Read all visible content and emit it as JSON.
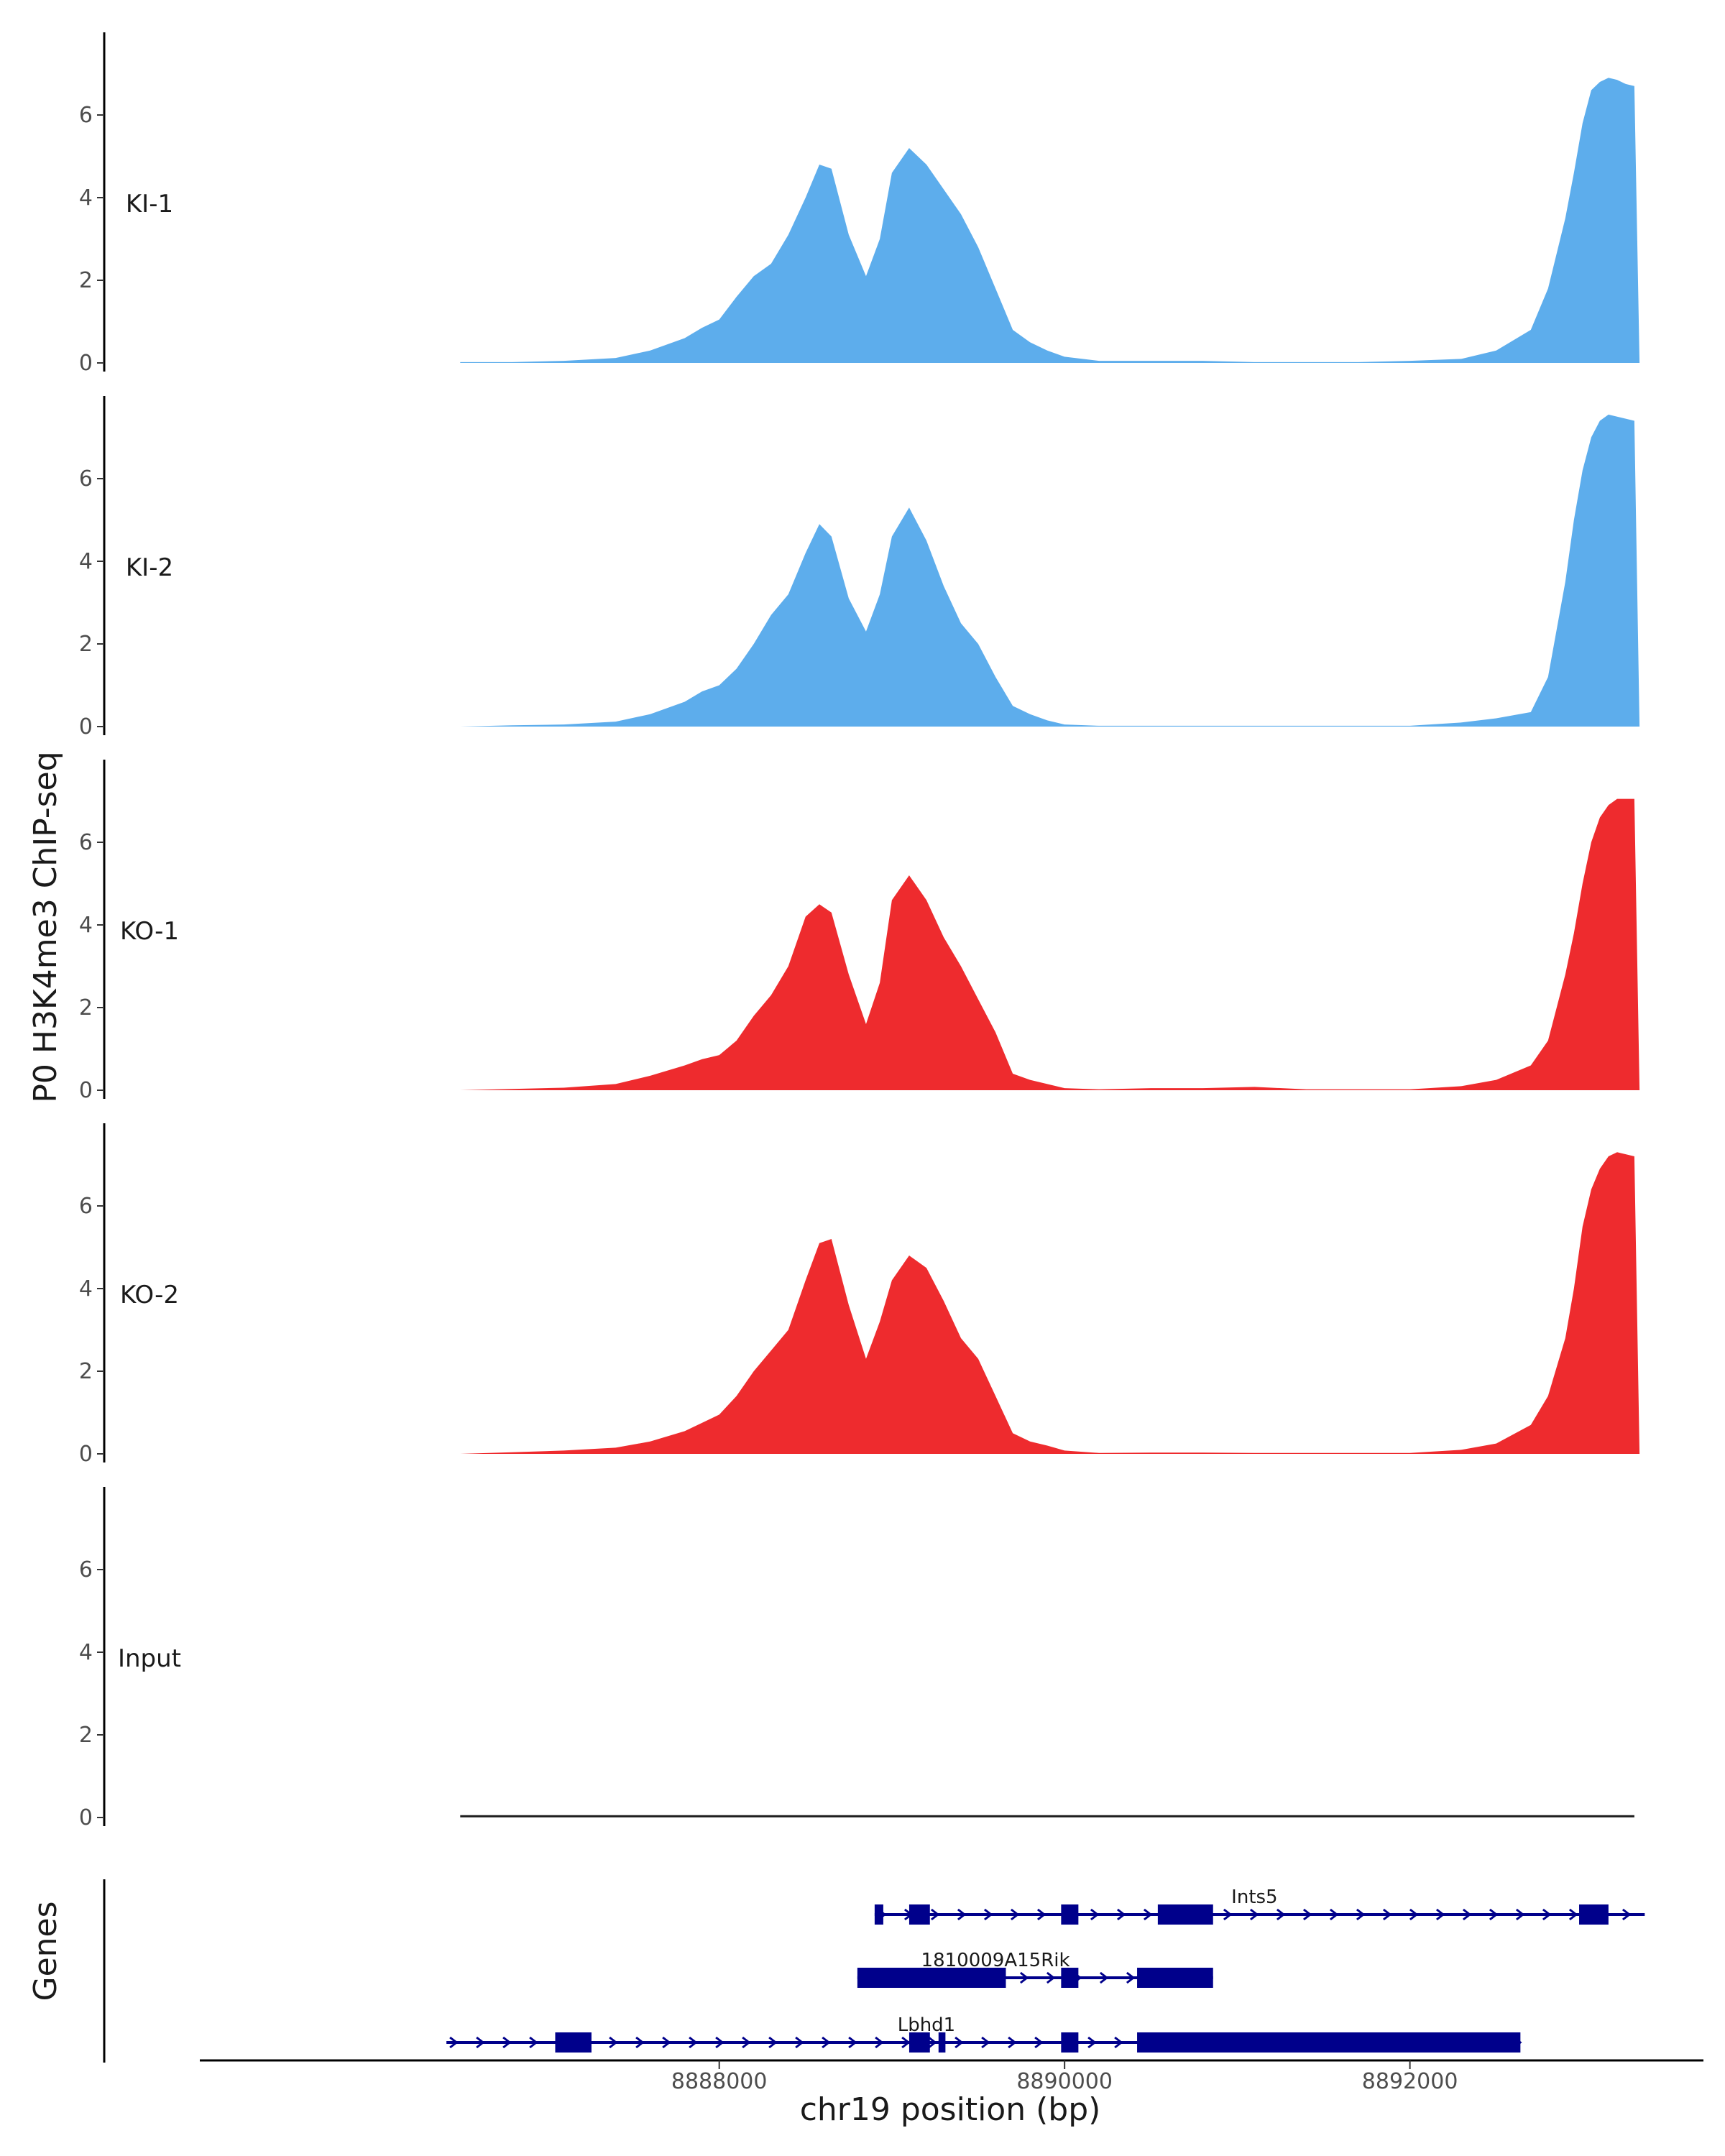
{
  "chart_data": {
    "type": "area",
    "title": "",
    "ylabel": "P0 H3K4me3 ChIP-seq",
    "xlabel": "chr19 position (bp)",
    "genes_label": "Genes",
    "xlim": [
      8885000,
      8893700
    ],
    "ylim": [
      0,
      7.8
    ],
    "y_ticks": [
      "0",
      "2",
      "4",
      "6"
    ],
    "y_tick_values": [
      0,
      2,
      4,
      6
    ],
    "x_ticks": [
      "8888000",
      "8890000",
      "8892000"
    ],
    "x_tick_values": [
      8888000,
      8890000,
      8892000
    ],
    "x": [
      8886500,
      8886800,
      8887100,
      8887400,
      8887600,
      8887800,
      8887900,
      8888000,
      8888100,
      8888200,
      8888300,
      8888400,
      8888500,
      8888580,
      8888650,
      8888750,
      8888850,
      8888930,
      8889000,
      8889100,
      8889200,
      8889300,
      8889400,
      8889500,
      8889600,
      8889700,
      8889800,
      8889900,
      8890000,
      8890200,
      8890500,
      8890800,
      8891100,
      8891400,
      8891700,
      8892000,
      8892300,
      8892500,
      8892700,
      8892800,
      8892900,
      8892950,
      8893000,
      8893050,
      8893100,
      8893150,
      8893200,
      8893250,
      8893300,
      8893330
    ],
    "series": [
      {
        "name": "KI-1",
        "color": "#5DADEC",
        "values": [
          0.02,
          0.02,
          0.05,
          0.12,
          0.3,
          0.6,
          0.85,
          1.05,
          1.6,
          2.1,
          2.4,
          3.1,
          4.0,
          4.8,
          4.7,
          3.1,
          2.1,
          3.0,
          4.6,
          5.2,
          4.8,
          4.2,
          3.6,
          2.8,
          1.8,
          0.8,
          0.5,
          0.3,
          0.15,
          0.05,
          0.05,
          0.05,
          0.02,
          0.02,
          0.02,
          0.05,
          0.1,
          0.3,
          0.8,
          1.8,
          3.5,
          4.6,
          5.8,
          6.6,
          6.8,
          6.9,
          6.85,
          6.75,
          6.7,
          0
        ]
      },
      {
        "name": "KI-2",
        "color": "#5DADEC",
        "values": [
          0.0,
          0.03,
          0.05,
          0.12,
          0.3,
          0.6,
          0.85,
          1.0,
          1.4,
          2.0,
          2.7,
          3.2,
          4.2,
          4.9,
          4.6,
          3.1,
          2.3,
          3.2,
          4.6,
          5.3,
          4.5,
          3.4,
          2.5,
          2.0,
          1.2,
          0.5,
          0.3,
          0.15,
          0.05,
          0.02,
          0.02,
          0.02,
          0.02,
          0.02,
          0.02,
          0.02,
          0.1,
          0.2,
          0.35,
          1.2,
          3.5,
          5.0,
          6.2,
          7.0,
          7.4,
          7.55,
          7.5,
          7.45,
          7.4,
          0
        ]
      },
      {
        "name": "KO-1",
        "color": "#EE2B2E",
        "values": [
          0.0,
          0.03,
          0.06,
          0.15,
          0.35,
          0.6,
          0.75,
          0.85,
          1.2,
          1.8,
          2.3,
          3.0,
          4.2,
          4.5,
          4.3,
          2.8,
          1.6,
          2.6,
          4.6,
          5.2,
          4.6,
          3.7,
          3.0,
          2.2,
          1.4,
          0.4,
          0.25,
          0.15,
          0.05,
          0.02,
          0.05,
          0.05,
          0.08,
          0.02,
          0.02,
          0.02,
          0.1,
          0.25,
          0.6,
          1.2,
          2.8,
          3.8,
          5.0,
          6.0,
          6.6,
          6.9,
          7.05,
          7.05,
          7.05,
          0
        ]
      },
      {
        "name": "KO-2",
        "color": "#EE2B2E",
        "values": [
          0.0,
          0.04,
          0.08,
          0.15,
          0.3,
          0.55,
          0.75,
          0.95,
          1.4,
          2.0,
          2.5,
          3.0,
          4.2,
          5.1,
          5.2,
          3.6,
          2.3,
          3.2,
          4.2,
          4.8,
          4.5,
          3.7,
          2.8,
          2.3,
          1.4,
          0.5,
          0.3,
          0.2,
          0.08,
          0.02,
          0.03,
          0.03,
          0.02,
          0.02,
          0.02,
          0.02,
          0.1,
          0.25,
          0.7,
          1.4,
          2.8,
          4.0,
          5.5,
          6.4,
          6.9,
          7.2,
          7.3,
          7.25,
          7.2,
          0
        ]
      },
      {
        "name": "Input",
        "color": "#1a1a1a",
        "values": [
          0.03,
          0.03,
          0.03,
          0.03,
          0.03,
          0.03,
          0.03,
          0.03,
          0.03,
          0.03,
          0.03,
          0.03,
          0.03,
          0.03,
          0.03,
          0.03,
          0.03,
          0.03,
          0.03,
          0.03,
          0.03,
          0.03,
          0.03,
          0.03,
          0.03,
          0.03,
          0.03,
          0.03,
          0.03,
          0.03,
          0.03,
          0.03,
          0.03,
          0.03,
          0.03,
          0.03,
          0.03,
          0.03,
          0.03,
          0.03,
          0.03,
          0.03,
          0.03,
          0.03,
          0.03,
          0.03,
          0.03,
          0.03,
          0.03,
          0
        ]
      }
    ],
    "genes": [
      {
        "name": "Ints5",
        "start": 8888900,
        "end": 8893360,
        "label_pos": 8891100,
        "color": "#00008B",
        "exons": [
          [
            8888900,
            8888950
          ],
          [
            8889100,
            8889220
          ],
          [
            8889980,
            8890080
          ],
          [
            8890540,
            8890860
          ],
          [
            8892980,
            8893150
          ]
        ]
      },
      {
        "name": "1810009A15Rik",
        "start": 8888800,
        "end": 8890860,
        "label_pos": 8889600,
        "color": "#00008B",
        "exons": [
          [
            8888800,
            8889660
          ],
          [
            8889980,
            8890080
          ],
          [
            8890420,
            8890860
          ]
        ]
      },
      {
        "name": "Lbhd1",
        "start": 8886420,
        "end": 8892640,
        "label_pos": 8889200,
        "color": "#00008B",
        "exons": [
          [
            8887050,
            8887260
          ],
          [
            8889100,
            8889220
          ],
          [
            8889270,
            8889310
          ],
          [
            8889980,
            8890080
          ],
          [
            8890420,
            8892640
          ]
        ]
      }
    ]
  }
}
